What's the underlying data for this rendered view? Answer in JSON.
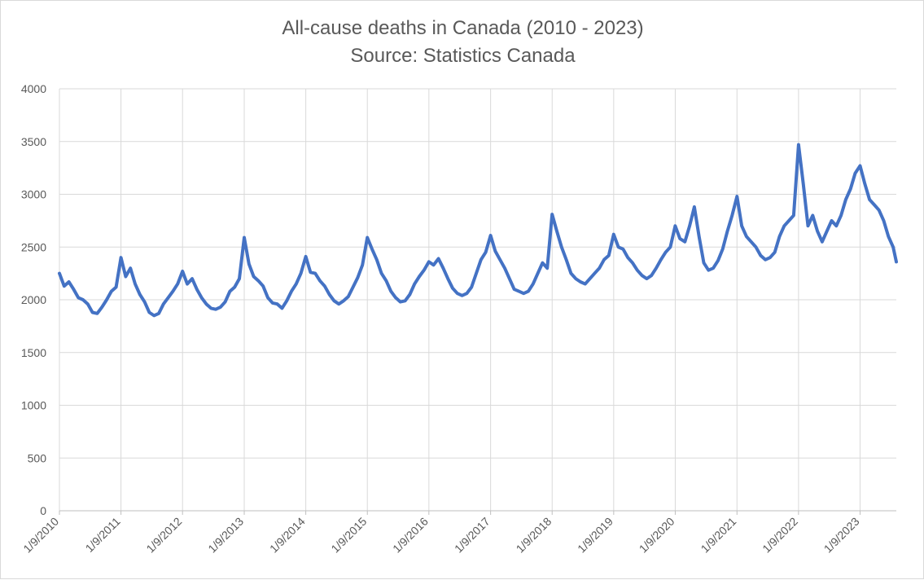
{
  "chart_data": {
    "type": "line",
    "title": "All-cause deaths in Canada (2010 - 2023)",
    "subtitle": "Source: Statistics Canada",
    "ylim": [
      0,
      4000
    ],
    "yticks": [
      0,
      500,
      1000,
      1500,
      2000,
      2500,
      3000,
      3500,
      4000
    ],
    "xlim": [
      "1/9/2010",
      "8/12/2023"
    ],
    "xticks": [
      "1/9/2010",
      "1/9/2011",
      "1/9/2012",
      "1/9/2013",
      "1/9/2014",
      "1/9/2015",
      "1/9/2016",
      "1/9/2017",
      "1/9/2018",
      "1/9/2019",
      "1/9/2020",
      "1/9/2021",
      "1/9/2022",
      "1/9/2023"
    ],
    "grid": true,
    "line_color": "#4472C4",
    "series": [
      {
        "values": [
          [
            "1/9/2010",
            2250
          ],
          [
            "2/6/2010",
            2130
          ],
          [
            "3/6/2010",
            2170
          ],
          [
            "4/3/2010",
            2100
          ],
          [
            "5/1/2010",
            2020
          ],
          [
            "5/29/2010",
            2000
          ],
          [
            "6/26/2010",
            1960
          ],
          [
            "7/24/2010",
            1880
          ],
          [
            "8/21/2010",
            1870
          ],
          [
            "9/18/2010",
            1930
          ],
          [
            "10/16/2010",
            2000
          ],
          [
            "11/13/2010",
            2080
          ],
          [
            "12/11/2010",
            2120
          ],
          [
            "1/9/2011",
            2400
          ],
          [
            "2/6/2011",
            2220
          ],
          [
            "3/6/2011",
            2300
          ],
          [
            "4/3/2011",
            2150
          ],
          [
            "5/1/2011",
            2050
          ],
          [
            "5/29/2011",
            1980
          ],
          [
            "6/26/2011",
            1880
          ],
          [
            "7/24/2011",
            1850
          ],
          [
            "8/21/2011",
            1870
          ],
          [
            "9/18/2011",
            1960
          ],
          [
            "10/16/2011",
            2020
          ],
          [
            "11/13/2011",
            2080
          ],
          [
            "12/11/2011",
            2150
          ],
          [
            "1/9/2012",
            2270
          ],
          [
            "2/6/2012",
            2150
          ],
          [
            "3/6/2012",
            2200
          ],
          [
            "4/3/2012",
            2100
          ],
          [
            "5/1/2012",
            2020
          ],
          [
            "5/29/2012",
            1960
          ],
          [
            "6/26/2012",
            1920
          ],
          [
            "7/24/2012",
            1910
          ],
          [
            "8/21/2012",
            1930
          ],
          [
            "9/18/2012",
            1980
          ],
          [
            "10/16/2012",
            2080
          ],
          [
            "11/13/2012",
            2120
          ],
          [
            "12/11/2012",
            2200
          ],
          [
            "1/9/2013",
            2590
          ],
          [
            "2/6/2013",
            2340
          ],
          [
            "3/6/2013",
            2220
          ],
          [
            "4/3/2013",
            2180
          ],
          [
            "5/1/2013",
            2130
          ],
          [
            "5/29/2013",
            2020
          ],
          [
            "6/26/2013",
            1970
          ],
          [
            "7/24/2013",
            1960
          ],
          [
            "8/21/2013",
            1920
          ],
          [
            "9/18/2013",
            1990
          ],
          [
            "10/16/2013",
            2080
          ],
          [
            "11/13/2013",
            2150
          ],
          [
            "12/11/2013",
            2250
          ],
          [
            "1/9/2014",
            2410
          ],
          [
            "2/6/2014",
            2260
          ],
          [
            "3/6/2014",
            2250
          ],
          [
            "4/3/2014",
            2180
          ],
          [
            "5/1/2014",
            2130
          ],
          [
            "5/29/2014",
            2050
          ],
          [
            "6/26/2014",
            1990
          ],
          [
            "7/24/2014",
            1960
          ],
          [
            "8/21/2014",
            1990
          ],
          [
            "9/18/2014",
            2030
          ],
          [
            "10/16/2014",
            2120
          ],
          [
            "11/13/2014",
            2210
          ],
          [
            "12/11/2014",
            2330
          ],
          [
            "1/9/2015",
            2590
          ],
          [
            "2/6/2015",
            2480
          ],
          [
            "3/6/2015",
            2380
          ],
          [
            "4/3/2015",
            2250
          ],
          [
            "5/1/2015",
            2180
          ],
          [
            "5/29/2015",
            2080
          ],
          [
            "6/26/2015",
            2020
          ],
          [
            "7/24/2015",
            1980
          ],
          [
            "8/21/2015",
            1990
          ],
          [
            "9/18/2015",
            2050
          ],
          [
            "10/16/2015",
            2150
          ],
          [
            "11/13/2015",
            2220
          ],
          [
            "12/11/2015",
            2280
          ],
          [
            "1/9/2016",
            2360
          ],
          [
            "2/6/2016",
            2330
          ],
          [
            "3/6/2016",
            2390
          ],
          [
            "4/3/2016",
            2300
          ],
          [
            "5/1/2016",
            2200
          ],
          [
            "5/29/2016",
            2110
          ],
          [
            "6/26/2016",
            2060
          ],
          [
            "7/24/2016",
            2040
          ],
          [
            "8/21/2016",
            2060
          ],
          [
            "9/18/2016",
            2120
          ],
          [
            "10/16/2016",
            2250
          ],
          [
            "11/13/2016",
            2380
          ],
          [
            "12/11/2016",
            2450
          ],
          [
            "1/9/2017",
            2610
          ],
          [
            "2/6/2017",
            2460
          ],
          [
            "3/6/2017",
            2380
          ],
          [
            "4/3/2017",
            2300
          ],
          [
            "5/1/2017",
            2200
          ],
          [
            "5/29/2017",
            2100
          ],
          [
            "6/26/2017",
            2080
          ],
          [
            "7/24/2017",
            2060
          ],
          [
            "8/21/2017",
            2080
          ],
          [
            "9/18/2017",
            2150
          ],
          [
            "10/16/2017",
            2250
          ],
          [
            "11/13/2017",
            2350
          ],
          [
            "12/11/2017",
            2300
          ],
          [
            "1/9/2018",
            2810
          ],
          [
            "2/6/2018",
            2650
          ],
          [
            "3/6/2018",
            2500
          ],
          [
            "4/3/2018",
            2380
          ],
          [
            "5/1/2018",
            2250
          ],
          [
            "5/29/2018",
            2200
          ],
          [
            "6/26/2018",
            2170
          ],
          [
            "7/24/2018",
            2150
          ],
          [
            "8/21/2018",
            2200
          ],
          [
            "9/18/2018",
            2250
          ],
          [
            "10/16/2018",
            2300
          ],
          [
            "11/13/2018",
            2380
          ],
          [
            "12/11/2018",
            2420
          ],
          [
            "1/9/2019",
            2620
          ],
          [
            "2/6/2019",
            2500
          ],
          [
            "3/6/2019",
            2480
          ],
          [
            "4/3/2019",
            2400
          ],
          [
            "5/1/2019",
            2350
          ],
          [
            "5/29/2019",
            2280
          ],
          [
            "6/26/2019",
            2230
          ],
          [
            "7/24/2019",
            2200
          ],
          [
            "8/21/2019",
            2230
          ],
          [
            "9/18/2019",
            2300
          ],
          [
            "10/16/2019",
            2380
          ],
          [
            "11/13/2019",
            2450
          ],
          [
            "12/11/2019",
            2500
          ],
          [
            "1/9/2020",
            2700
          ],
          [
            "2/6/2020",
            2580
          ],
          [
            "3/6/2020",
            2550
          ],
          [
            "4/3/2020",
            2700
          ],
          [
            "5/1/2020",
            2880
          ],
          [
            "5/29/2020",
            2600
          ],
          [
            "6/26/2020",
            2350
          ],
          [
            "7/24/2020",
            2280
          ],
          [
            "8/21/2020",
            2300
          ],
          [
            "9/18/2020",
            2370
          ],
          [
            "10/16/2020",
            2480
          ],
          [
            "11/13/2020",
            2650
          ],
          [
            "12/11/2020",
            2800
          ],
          [
            "1/9/2021",
            2980
          ],
          [
            "2/6/2021",
            2700
          ],
          [
            "3/6/2021",
            2600
          ],
          [
            "4/3/2021",
            2550
          ],
          [
            "5/1/2021",
            2500
          ],
          [
            "5/29/2021",
            2420
          ],
          [
            "6/26/2021",
            2380
          ],
          [
            "7/24/2021",
            2400
          ],
          [
            "8/21/2021",
            2450
          ],
          [
            "9/18/2021",
            2600
          ],
          [
            "10/16/2021",
            2700
          ],
          [
            "11/13/2021",
            2750
          ],
          [
            "12/11/2021",
            2800
          ],
          [
            "1/9/2022",
            3470
          ],
          [
            "2/6/2022",
            3100
          ],
          [
            "3/6/2022",
            2700
          ],
          [
            "4/3/2022",
            2800
          ],
          [
            "5/1/2022",
            2650
          ],
          [
            "5/29/2022",
            2550
          ],
          [
            "6/26/2022",
            2650
          ],
          [
            "7/24/2022",
            2750
          ],
          [
            "8/21/2022",
            2700
          ],
          [
            "9/18/2022",
            2800
          ],
          [
            "10/16/2022",
            2950
          ],
          [
            "11/13/2022",
            3050
          ],
          [
            "12/11/2022",
            3200
          ],
          [
            "1/9/2023",
            3270
          ],
          [
            "2/6/2023",
            3100
          ],
          [
            "3/6/2023",
            2950
          ],
          [
            "4/3/2023",
            2900
          ],
          [
            "5/1/2023",
            2850
          ],
          [
            "5/29/2023",
            2750
          ],
          [
            "6/26/2023",
            2600
          ],
          [
            "7/24/2023",
            2500
          ],
          [
            "8/12/2023",
            2360
          ]
        ]
      }
    ]
  }
}
